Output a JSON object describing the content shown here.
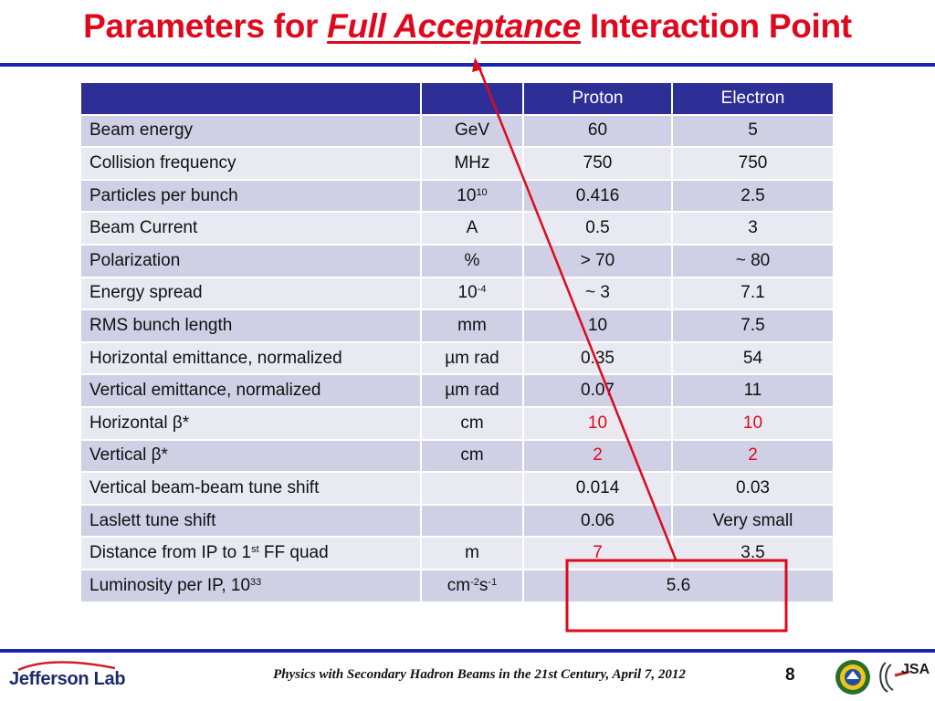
{
  "title": {
    "prefix": "Parameters for ",
    "emphasis": "Full Acceptance",
    "suffix": " Interaction Point"
  },
  "table": {
    "headers": [
      "",
      "",
      "Proton",
      "Electron"
    ],
    "rows": [
      {
        "param": "Beam energy",
        "unit": "GeV",
        "proton": "60",
        "electron": "5"
      },
      {
        "param": "Collision frequency",
        "unit": "MHz",
        "proton": "750",
        "electron": "750"
      },
      {
        "param": "Particles per bunch",
        "unit_base": "10",
        "unit_sup": "10",
        "proton": "0.416",
        "electron": "2.5"
      },
      {
        "param": "Beam Current",
        "unit": "A",
        "proton": "0.5",
        "electron": "3"
      },
      {
        "param": "Polarization",
        "unit": "%",
        "proton": "> 70",
        "electron": "~ 80"
      },
      {
        "param": "Energy spread",
        "unit_base": "10",
        "unit_sup": "-4",
        "proton": "~ 3",
        "electron": "7.1"
      },
      {
        "param": "RMS bunch length",
        "unit": "mm",
        "proton": "10",
        "electron": "7.5"
      },
      {
        "param": "Horizontal emittance, normalized",
        "unit": "µm rad",
        "proton": "0.35",
        "electron": "54"
      },
      {
        "param": "Vertical emittance, normalized",
        "unit": "µm rad",
        "proton": "0.07",
        "electron": "11"
      },
      {
        "param": "Horizontal β*",
        "unit": "cm",
        "proton": "10",
        "electron": "10"
      },
      {
        "param": "Vertical β*",
        "unit": "cm",
        "proton": "2",
        "electron": "2"
      },
      {
        "param": "Vertical beam-beam tune shift",
        "unit": "",
        "proton": "0.014",
        "electron": "0.03"
      },
      {
        "param": "Laslett tune shift",
        "unit": "",
        "proton": "0.06",
        "electron": "Very small"
      },
      {
        "param_base": "Distance from IP to 1",
        "param_sup": "st",
        "param_tail": " FF quad",
        "unit": "m",
        "proton": "7",
        "electron": "3.5"
      },
      {
        "param_base": "Luminosity per IP, 10",
        "param_sup": "33",
        "unit_a": "cm",
        "unit_a_sup": "-2",
        "unit_b": "s",
        "unit_b_sup": "-1",
        "combined": "5.6"
      }
    ]
  },
  "footer": {
    "text": "Physics with Secondary Hadron Beams in the 21st Century, April 7, 2012",
    "page": "8",
    "logo_left": "Jefferson Lab",
    "logo_right": "JSA"
  },
  "colors": {
    "title_red": "#e0081c",
    "rule_blue": "#1d23b7",
    "header_bg": "#2e2f96",
    "row_odd": "#cfd0e5",
    "row_even": "#e9e9f2",
    "highlight_red": "#e0081c"
  },
  "icons": [
    "jefferson-lab-logo",
    "doe-seal-icon",
    "jsa-logo"
  ]
}
